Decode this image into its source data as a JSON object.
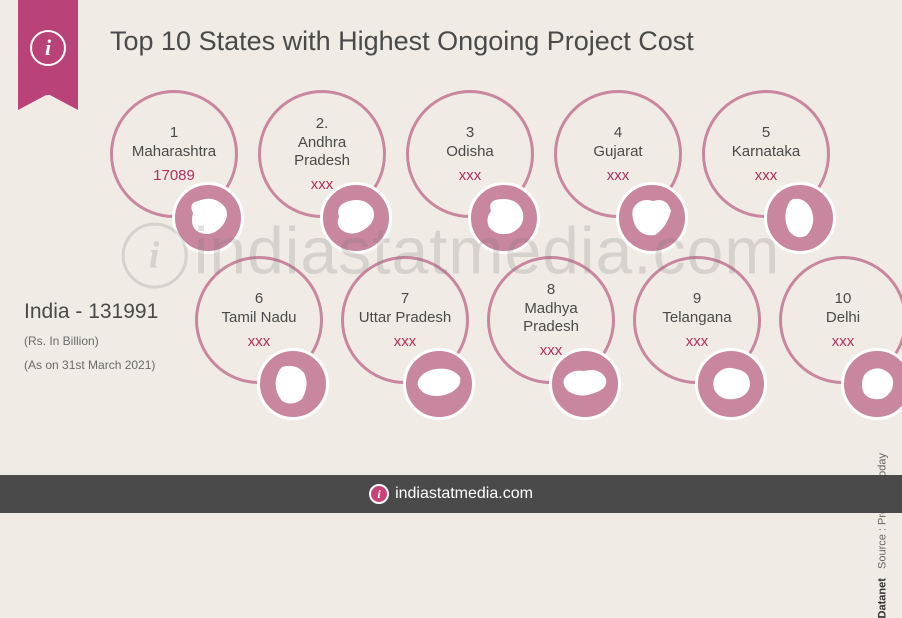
{
  "title": "Top 10 States with Highest Ongoing Project Cost",
  "india_label": "India - 131991",
  "unit_note": "(Rs. In Billion)",
  "date_note": "(As on 31st March 2021)",
  "source_label": "Source : Projects Today",
  "source_brand": "Datanet",
  "footer_brand": "indiastatmedia.com",
  "watermark": "indiastatmedia.com",
  "colors": {
    "ribbon": "#b94378",
    "circle_border": "#c9869f",
    "map_fill": "#c9869f",
    "value_text": "#b03060",
    "background": "#f0ebe4",
    "footer_bg": "#4a4a4a"
  },
  "states": [
    {
      "rank": "1",
      "name": "Maharashtra",
      "value": "17089"
    },
    {
      "rank": "2.",
      "name": "Andhra Pradesh",
      "value": "xxx"
    },
    {
      "rank": "3",
      "name": "Odisha",
      "value": "xxx"
    },
    {
      "rank": "4",
      "name": "Gujarat",
      "value": "xxx"
    },
    {
      "rank": "5",
      "name": "Karnataka",
      "value": "xxx"
    },
    {
      "rank": "6",
      "name": "Tamil Nadu",
      "value": "xxx"
    },
    {
      "rank": "7",
      "name": "Uttar Pradesh",
      "value": "xxx"
    },
    {
      "rank": "8",
      "name": "Madhya Pradesh",
      "value": "xxx"
    },
    {
      "rank": "9",
      "name": "Telangana",
      "value": "xxx"
    },
    {
      "rank": "10",
      "name": "Delhi",
      "value": "xxx"
    }
  ]
}
